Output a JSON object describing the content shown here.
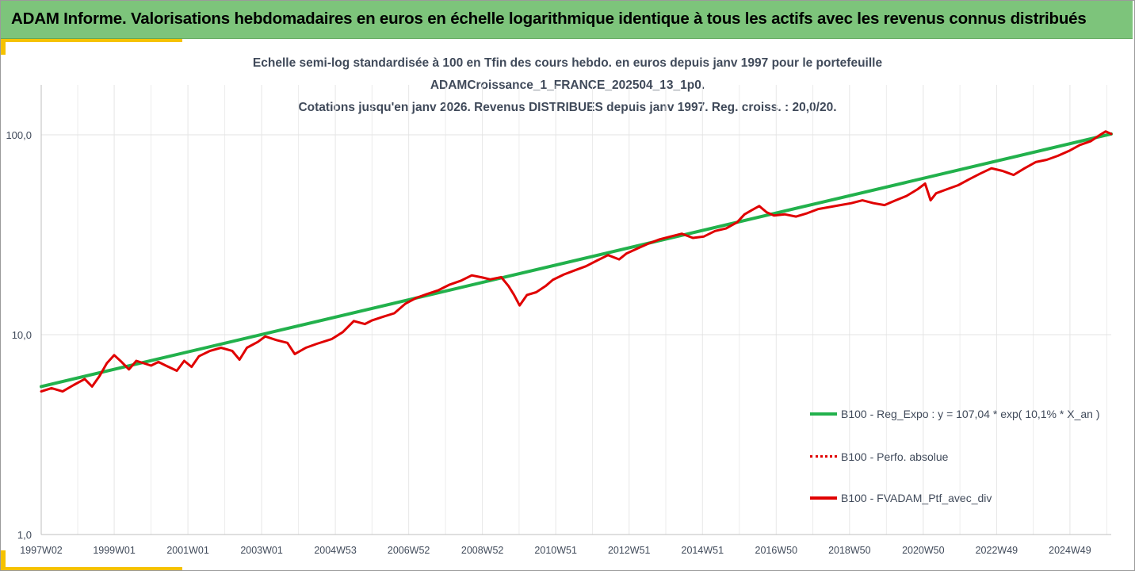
{
  "header": {
    "title": "ADAM Informe. Valorisations hebdomadaires en euros en échelle logarithmique identique à tous les actifs avec les revenus connus distribués"
  },
  "chart_data": {
    "type": "line",
    "title_lines": [
      "Echelle semi-log standardisée à 100 en Tfin des cours hebdo.  en euros depuis janv 1997 pour le portefeuille",
      "ADAMCroissance_1_FRANCE_202504_13_1p0.",
      "Cotations  jusqu'en janv 2026. Revenus DISTRIBUES depuis janv 1997. Reg. croiss. : 20,0/20."
    ],
    "y_scale": "log",
    "ylim": [
      1,
      100
    ],
    "y_ticks": [
      {
        "value": 1,
        "label": "1,0"
      },
      {
        "value": 10,
        "label": "10,0"
      },
      {
        "value": 100,
        "label": "100,0"
      }
    ],
    "x_range": [
      1997.02,
      2026.05
    ],
    "x_ticks": [
      {
        "x": 1997.02,
        "label": "1997W02"
      },
      {
        "x": 1999.0,
        "label": "1999W01"
      },
      {
        "x": 2001.0,
        "label": "2001W01"
      },
      {
        "x": 2003.0,
        "label": "2003W01"
      },
      {
        "x": 2005.0,
        "label": "2004W53"
      },
      {
        "x": 2006.99,
        "label": "2006W52"
      },
      {
        "x": 2008.99,
        "label": "2008W52"
      },
      {
        "x": 2010.98,
        "label": "2010W51"
      },
      {
        "x": 2012.97,
        "label": "2012W51"
      },
      {
        "x": 2014.96,
        "label": "2014W51"
      },
      {
        "x": 2016.96,
        "label": "2016W50"
      },
      {
        "x": 2018.95,
        "label": "2018W50"
      },
      {
        "x": 2020.95,
        "label": "2020W50"
      },
      {
        "x": 2022.94,
        "label": "2022W49"
      },
      {
        "x": 2024.93,
        "label": "2024W49"
      }
    ],
    "grid": {
      "vertical": true,
      "horizontal": true
    },
    "legend_position": "bottom-right",
    "series": [
      {
        "name": "B100 - Reg_Expo : y = 107,04 * exp( 10,1% *  X_an )",
        "color": "#22b14c",
        "style": "solid",
        "points": [
          [
            1997.02,
            5.5
          ],
          [
            2026.05,
            101
          ]
        ]
      },
      {
        "name": "B100 - Perfo. absolue",
        "color": "#e00000",
        "style": "dotted",
        "points": []
      },
      {
        "name": "B100 - FVADAM_Ptf_avec_div",
        "color": "#e00000",
        "style": "solid",
        "points": [
          [
            1997.02,
            5.2
          ],
          [
            1997.3,
            5.4
          ],
          [
            1997.6,
            5.2
          ],
          [
            1997.9,
            5.6
          ],
          [
            1998.2,
            6.0
          ],
          [
            1998.4,
            5.5
          ],
          [
            1998.6,
            6.2
          ],
          [
            1998.8,
            7.2
          ],
          [
            1999.0,
            7.9
          ],
          [
            1999.2,
            7.3
          ],
          [
            1999.4,
            6.7
          ],
          [
            1999.6,
            7.4
          ],
          [
            1999.8,
            7.2
          ],
          [
            2000.0,
            7.0
          ],
          [
            2000.2,
            7.3
          ],
          [
            2000.4,
            7.0
          ],
          [
            2000.7,
            6.6
          ],
          [
            2000.9,
            7.4
          ],
          [
            2001.1,
            6.9
          ],
          [
            2001.3,
            7.8
          ],
          [
            2001.6,
            8.3
          ],
          [
            2001.9,
            8.6
          ],
          [
            2002.2,
            8.3
          ],
          [
            2002.4,
            7.5
          ],
          [
            2002.6,
            8.6
          ],
          [
            2002.9,
            9.2
          ],
          [
            2003.1,
            9.8
          ],
          [
            2003.4,
            9.4
          ],
          [
            2003.7,
            9.1
          ],
          [
            2003.9,
            8.0
          ],
          [
            2004.2,
            8.6
          ],
          [
            2004.5,
            9.0
          ],
          [
            2004.9,
            9.5
          ],
          [
            2005.2,
            10.3
          ],
          [
            2005.5,
            11.7
          ],
          [
            2005.8,
            11.3
          ],
          [
            2006.0,
            11.8
          ],
          [
            2006.3,
            12.3
          ],
          [
            2006.6,
            12.8
          ],
          [
            2006.9,
            14.3
          ],
          [
            2007.2,
            15.3
          ],
          [
            2007.5,
            16.0
          ],
          [
            2007.8,
            16.7
          ],
          [
            2008.1,
            17.8
          ],
          [
            2008.4,
            18.6
          ],
          [
            2008.7,
            19.8
          ],
          [
            2009.0,
            19.3
          ],
          [
            2009.2,
            18.9
          ],
          [
            2009.5,
            19.4
          ],
          [
            2009.7,
            17.5
          ],
          [
            2009.85,
            15.8
          ],
          [
            2010.0,
            14.0
          ],
          [
            2010.2,
            15.8
          ],
          [
            2010.45,
            16.3
          ],
          [
            2010.7,
            17.5
          ],
          [
            2010.9,
            18.8
          ],
          [
            2011.2,
            20.0
          ],
          [
            2011.5,
            21.0
          ],
          [
            2011.8,
            22.0
          ],
          [
            2012.1,
            23.5
          ],
          [
            2012.4,
            25.0
          ],
          [
            2012.7,
            23.8
          ],
          [
            2012.9,
            25.5
          ],
          [
            2013.2,
            27.0
          ],
          [
            2013.5,
            28.6
          ],
          [
            2013.8,
            30.0
          ],
          [
            2014.1,
            31.0
          ],
          [
            2014.4,
            32.0
          ],
          [
            2014.7,
            30.5
          ],
          [
            2015.0,
            31.0
          ],
          [
            2015.3,
            33.0
          ],
          [
            2015.6,
            34.0
          ],
          [
            2015.9,
            36.5
          ],
          [
            2016.1,
            40.0
          ],
          [
            2016.3,
            42.0
          ],
          [
            2016.5,
            44.0
          ],
          [
            2016.7,
            41.0
          ],
          [
            2016.9,
            39.5
          ],
          [
            2017.2,
            40.0
          ],
          [
            2017.5,
            39.0
          ],
          [
            2017.8,
            40.5
          ],
          [
            2018.1,
            42.5
          ],
          [
            2018.4,
            43.5
          ],
          [
            2018.7,
            44.5
          ],
          [
            2019.0,
            45.5
          ],
          [
            2019.3,
            47.0
          ],
          [
            2019.6,
            45.5
          ],
          [
            2019.9,
            44.5
          ],
          [
            2020.2,
            47.0
          ],
          [
            2020.5,
            49.5
          ],
          [
            2020.8,
            53.5
          ],
          [
            2021.0,
            57.0
          ],
          [
            2021.15,
            47.0
          ],
          [
            2021.3,
            51.0
          ],
          [
            2021.6,
            53.5
          ],
          [
            2021.9,
            56.0
          ],
          [
            2022.2,
            60.0
          ],
          [
            2022.5,
            64.0
          ],
          [
            2022.8,
            68.0
          ],
          [
            2023.1,
            66.0
          ],
          [
            2023.4,
            63.0
          ],
          [
            2023.7,
            68.0
          ],
          [
            2024.0,
            73.0
          ],
          [
            2024.3,
            75.0
          ],
          [
            2024.6,
            78.5
          ],
          [
            2024.9,
            83.0
          ],
          [
            2025.2,
            89.0
          ],
          [
            2025.5,
            93.0
          ],
          [
            2025.75,
            100.0
          ],
          [
            2025.9,
            104.0
          ],
          [
            2026.05,
            101.0
          ]
        ]
      }
    ]
  }
}
